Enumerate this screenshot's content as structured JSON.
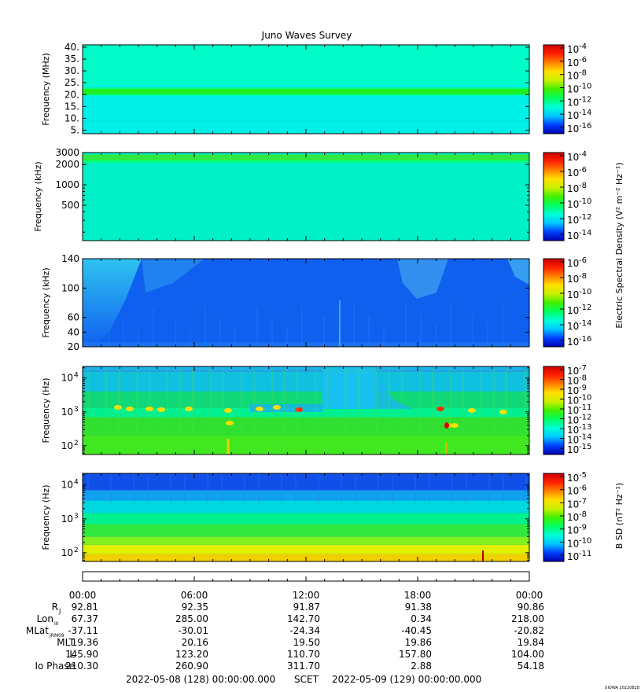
{
  "title": "Juno Waves Survey",
  "colorbar_e_label": "Electric Spectral Density (V² m⁻² Hz⁻¹)",
  "colorbar_b_label": "B SD (nT² Hz⁻¹)",
  "credit": "UIOWA 20220828",
  "x_ticks": [
    "00:00",
    "06:00",
    "12:00",
    "18:00",
    "00:00"
  ],
  "ephemeris": {
    "rows": [
      {
        "label": "R",
        "sub": "J",
        "values": [
          "92.81",
          "92.35",
          "91.87",
          "91.38",
          "90.86"
        ]
      },
      {
        "label": "Lon",
        "sub": "III",
        "values": [
          "67.37",
          "285.00",
          "142.70",
          "0.34",
          "218.00"
        ]
      },
      {
        "label": "MLat",
        "sub": "JRM09",
        "values": [
          "-37.11",
          "-30.01",
          "-24.34",
          "-40.45",
          "-20.82"
        ]
      },
      {
        "label": "MLT",
        "sub": "",
        "values": [
          "19.36",
          "20.16",
          "19.50",
          "19.86",
          "19.84"
        ]
      },
      {
        "label": "L",
        "sub": "",
        "values": [
          "145.90",
          "123.20",
          "110.70",
          "157.80",
          "104.00"
        ]
      },
      {
        "label": "Io Phase",
        "sub": "",
        "values": [
          "210.30",
          "260.90",
          "311.70",
          "2.88",
          "54.18"
        ]
      }
    ],
    "range_start": "2022-05-08 (128) 00:00:00.000",
    "range_mid": "SCET",
    "range_end": "2022-05-09 (129) 00:00:00.000"
  },
  "colors": {
    "ramp": [
      "#0000b0",
      "#0040ff",
      "#00c8ff",
      "#00ffd8",
      "#00ff60",
      "#40f000",
      "#c8f000",
      "#ffe000",
      "#ff8000",
      "#ff2000",
      "#d00000"
    ]
  },
  "chart_data": [
    {
      "type": "heatmap",
      "ylabel": "Frequency (MHz)",
      "yscale": "linear",
      "ylim": [
        3.5,
        41
      ],
      "yticks": [
        {
          "v": 5,
          "t": "5."
        },
        {
          "v": 10,
          "t": "10."
        },
        {
          "v": 15,
          "t": "15."
        },
        {
          "v": 20,
          "t": "20."
        },
        {
          "v": 25,
          "t": "25."
        },
        {
          "v": 30,
          "t": "30."
        },
        {
          "v": 35,
          "t": "35."
        },
        {
          "v": 40,
          "t": "40."
        }
      ],
      "bands": [
        {
          "from": 3.5,
          "to": 41,
          "color": "#00f0e8"
        },
        {
          "from": 24,
          "to": 41,
          "color": "#00fcc8"
        },
        {
          "from": 20.2,
          "to": 22.4,
          "color": "#20f020"
        },
        {
          "from": 19.6,
          "to": 20.2,
          "color": "#00ff80"
        },
        {
          "from": 22.4,
          "to": 23,
          "color": "#00ff80"
        },
        {
          "from": 8.6,
          "to": 9.2,
          "color": "#00e8e0"
        }
      ],
      "colorbar": {
        "ticks": [
          {
            "exp": -4
          },
          {
            "exp": -6
          },
          {
            "exp": -8
          },
          {
            "exp": -10
          },
          {
            "exp": -12
          },
          {
            "exp": -14
          },
          {
            "exp": -16
          }
        ]
      }
    },
    {
      "type": "heatmap",
      "ylabel": "Frequency (kHz)",
      "yscale": "log",
      "ylim": [
        150,
        3000
      ],
      "yticks": [
        {
          "v": 500,
          "t": "500"
        },
        {
          "v": 1000,
          "t": "1000"
        },
        {
          "v": 2000,
          "t": "2000"
        },
        {
          "v": 3000,
          "t": "3000"
        }
      ],
      "bands": [
        {
          "from": 150,
          "to": 3000,
          "color": "#00f0c8"
        },
        {
          "from": 2300,
          "to": 2800,
          "color": "#30e840"
        },
        {
          "from": 2100,
          "to": 2300,
          "color": "#00ff80"
        }
      ],
      "colorbar": {
        "ticks": [
          {
            "exp": -4
          },
          {
            "exp": -6
          },
          {
            "exp": -8
          },
          {
            "exp": -10
          },
          {
            "exp": -12
          },
          {
            "exp": -14
          }
        ]
      }
    },
    {
      "type": "heatmap",
      "ylabel": "Frequency (kHz)",
      "yscale": "linear",
      "ylim": [
        20,
        140
      ],
      "yticks": [
        {
          "v": 20,
          "t": "20"
        },
        {
          "v": 40,
          "t": "40"
        },
        {
          "v": 60,
          "t": "60"
        },
        {
          "v": 100,
          "t": "100"
        },
        {
          "v": 140,
          "t": "140"
        }
      ],
      "bands": [
        {
          "from": 20,
          "to": 140,
          "color": "#1060f0"
        },
        {
          "from": 20,
          "to": 26,
          "color": "#1a70f0"
        }
      ],
      "colorbar": {
        "ticks": [
          {
            "exp": -6
          },
          {
            "exp": -8
          },
          {
            "exp": -10
          },
          {
            "exp": -12
          },
          {
            "exp": -14
          },
          {
            "exp": -16
          }
        ]
      }
    },
    {
      "type": "heatmap",
      "ylabel": "Frequency (Hz)",
      "yscale": "log",
      "ylim": [
        55,
        22000
      ],
      "yticks": [
        {
          "v": 100,
          "t": "10",
          "exp": "2"
        },
        {
          "v": 1000,
          "t": "10",
          "exp": "3"
        },
        {
          "v": 10000,
          "t": "10",
          "exp": "4"
        }
      ],
      "bands": [
        {
          "from": 55,
          "to": 22000,
          "color": "#30e030"
        },
        {
          "from": 55,
          "to": 200,
          "color": "#40e820"
        },
        {
          "from": 700,
          "to": 1300,
          "color": "#00f090"
        },
        {
          "from": 1300,
          "to": 4000,
          "color": "#10d878"
        },
        {
          "from": 4000,
          "to": 15000,
          "color": "#10c0e0"
        },
        {
          "from": 15000,
          "to": 22000,
          "color": "#2090f0"
        }
      ],
      "colorbar": {
        "ticks": [
          {
            "exp": -7
          },
          {
            "exp": -8
          },
          {
            "exp": -9
          },
          {
            "exp": -10
          },
          {
            "exp": -11
          },
          {
            "exp": -12
          },
          {
            "exp": -13
          },
          {
            "exp": -14
          },
          {
            "exp": -15
          }
        ]
      }
    },
    {
      "type": "heatmap",
      "ylabel": "Frequency (Hz)",
      "yscale": "log",
      "ylim": [
        55,
        22000
      ],
      "yticks": [
        {
          "v": 100,
          "t": "10",
          "exp": "2"
        },
        {
          "v": 1000,
          "t": "10",
          "exp": "3"
        },
        {
          "v": 10000,
          "t": "10",
          "exp": "4"
        }
      ],
      "bands": [
        {
          "from": 55,
          "to": 22000,
          "color": "#1060f0"
        },
        {
          "from": 55,
          "to": 90,
          "color": "#f0d000"
        },
        {
          "from": 90,
          "to": 170,
          "color": "#e0f000"
        },
        {
          "from": 170,
          "to": 300,
          "color": "#80f020"
        },
        {
          "from": 300,
          "to": 700,
          "color": "#30e840"
        },
        {
          "from": 700,
          "to": 1500,
          "color": "#00f090"
        },
        {
          "from": 1500,
          "to": 3500,
          "color": "#00d8e0"
        },
        {
          "from": 3500,
          "to": 7000,
          "color": "#10a0f0"
        },
        {
          "from": 7000,
          "to": 22000,
          "color": "#1050e8"
        }
      ],
      "colorbar": {
        "ticks": [
          {
            "exp": -5
          },
          {
            "exp": -6
          },
          {
            "exp": -7
          },
          {
            "exp": -8
          },
          {
            "exp": -9
          },
          {
            "exp": -10
          },
          {
            "exp": -11
          }
        ]
      }
    }
  ]
}
